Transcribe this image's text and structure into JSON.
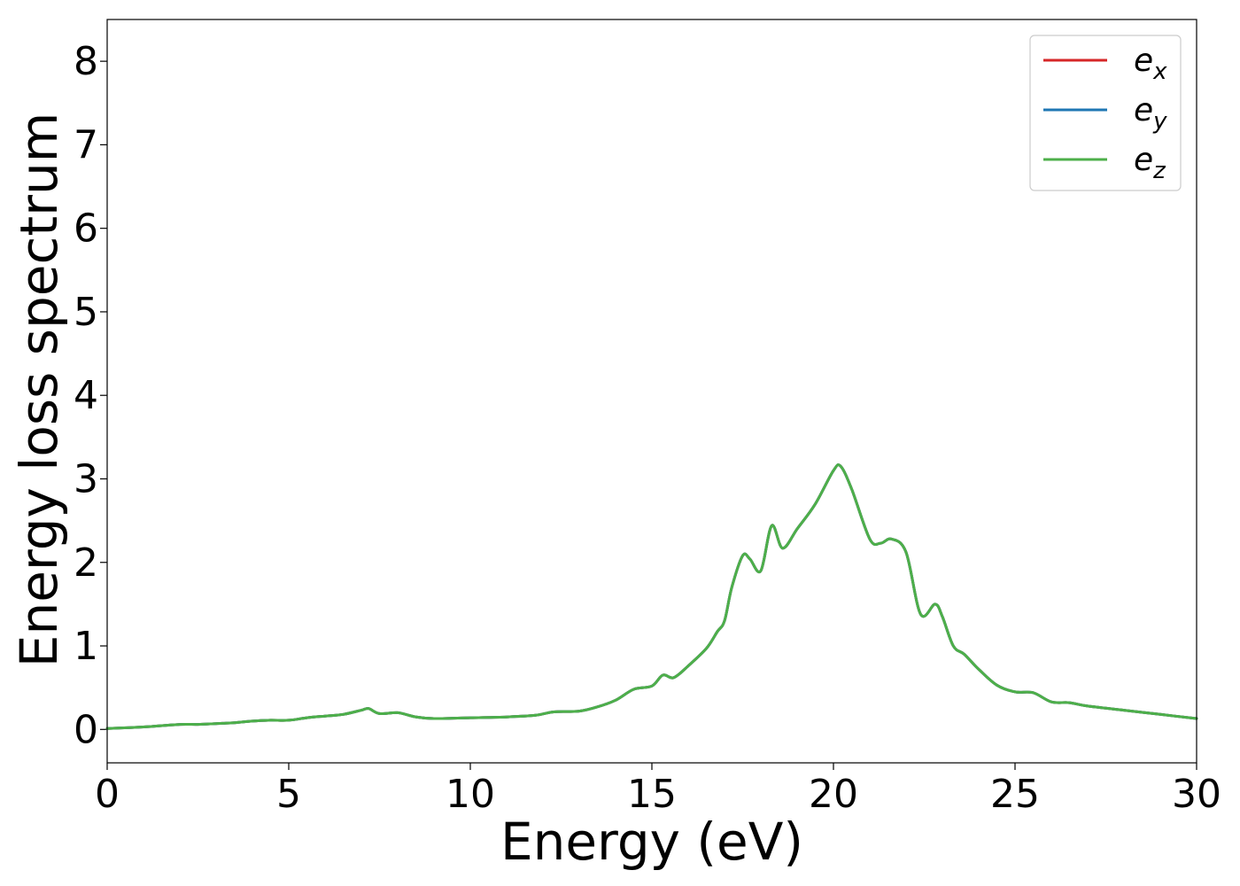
{
  "chart_data": {
    "type": "line",
    "xlabel": "Energy (eV)",
    "ylabel": "Energy loss spectrum",
    "xlim": [
      0,
      30
    ],
    "ylim": [
      -0.4,
      8.5
    ],
    "xticks": [
      0,
      5,
      10,
      15,
      20,
      25,
      30
    ],
    "yticks": [
      0,
      1,
      2,
      3,
      4,
      5,
      6,
      7,
      8
    ],
    "xtick_labels": [
      "0",
      "5",
      "10",
      "15",
      "20",
      "25",
      "30"
    ],
    "ytick_labels": [
      "0",
      "1",
      "2",
      "3",
      "4",
      "5",
      "6",
      "7",
      "8"
    ],
    "grid": false,
    "legend_position": "top-right",
    "series": [
      {
        "name": "e",
        "subscript": "x",
        "color": "#d62728"
      },
      {
        "name": "e",
        "subscript": "y",
        "color": "#1f77b4"
      },
      {
        "name": "e",
        "subscript": "z",
        "color": "#4daf4a"
      }
    ],
    "x": [
      0,
      1,
      2,
      2.5,
      3,
      3.5,
      4,
      4.5,
      5,
      5.5,
      6,
      6.5,
      7,
      7.2,
      7.5,
      8,
      8.5,
      9,
      10,
      11,
      11.8,
      12.3,
      13,
      13.5,
      14,
      14.5,
      15,
      15.3,
      15.6,
      16,
      16.5,
      16.8,
      17,
      17.2,
      17.5,
      17.7,
      18,
      18.3,
      18.6,
      19,
      19.5,
      20,
      20.2,
      20.5,
      21,
      21.3,
      21.6,
      22,
      22.4,
      22.8,
      23,
      23.3,
      23.6,
      24,
      24.5,
      25,
      25.5,
      26,
      26.5,
      27,
      28,
      29,
      30
    ],
    "values": [
      0.01,
      0.03,
      0.06,
      0.06,
      0.07,
      0.08,
      0.1,
      0.11,
      0.11,
      0.14,
      0.16,
      0.18,
      0.23,
      0.25,
      0.19,
      0.2,
      0.15,
      0.13,
      0.14,
      0.15,
      0.17,
      0.21,
      0.22,
      0.27,
      0.35,
      0.48,
      0.52,
      0.65,
      0.62,
      0.76,
      0.97,
      1.17,
      1.3,
      1.7,
      2.08,
      2.04,
      1.9,
      2.44,
      2.17,
      2.4,
      2.7,
      3.1,
      3.15,
      2.88,
      2.28,
      2.23,
      2.28,
      2.12,
      1.38,
      1.5,
      1.35,
      1.0,
      0.9,
      0.72,
      0.53,
      0.45,
      0.44,
      0.33,
      0.32,
      0.28,
      0.23,
      0.18,
      0.13
    ]
  }
}
